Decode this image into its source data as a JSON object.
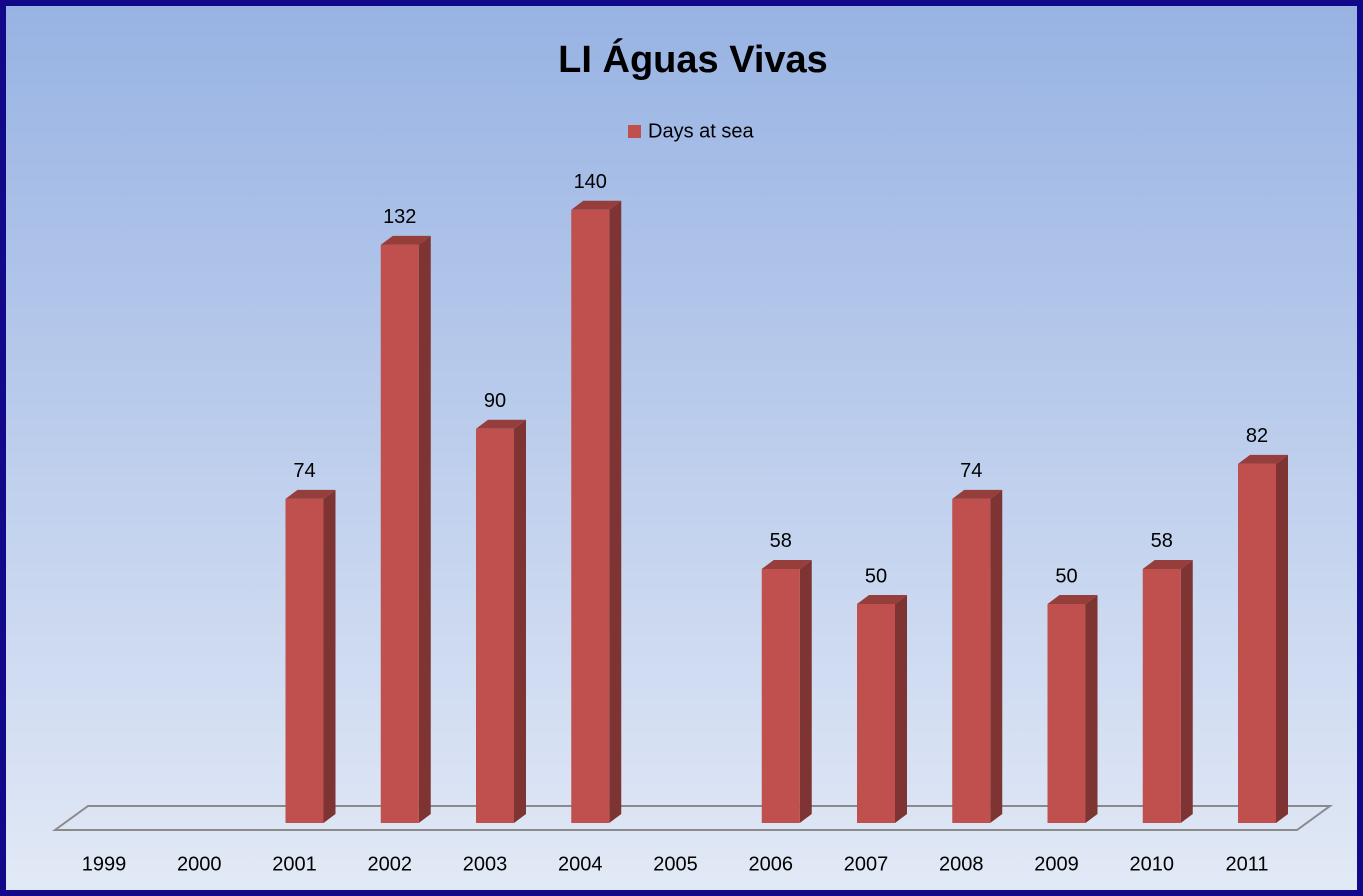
{
  "chart_data": {
    "type": "bar3d",
    "title": "LI Águas Vivas",
    "categories": [
      "1999",
      "2000",
      "2001",
      "2002",
      "2003",
      "2004",
      "2005",
      "2006",
      "2007",
      "2008",
      "2009",
      "2010",
      "2011"
    ],
    "series": [
      {
        "name": "Days at sea",
        "color": "#c0504d",
        "values": [
          null,
          null,
          74,
          132,
          90,
          140,
          null,
          58,
          50,
          74,
          50,
          58,
          82
        ]
      }
    ],
    "legend": "top"
  }
}
